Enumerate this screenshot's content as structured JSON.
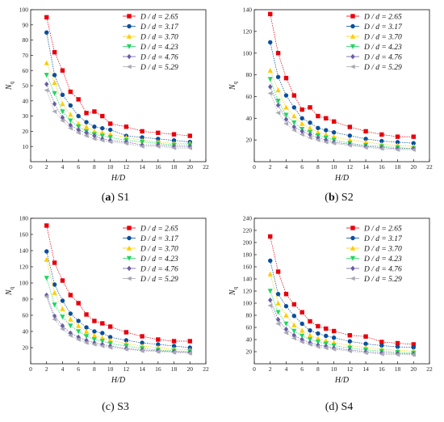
{
  "chart_data": [
    {
      "type": "scatter",
      "caption_letter": "a",
      "caption_text": "S1",
      "xlabel": "H/D",
      "ylabel": "N",
      "ylabel_sub": "q",
      "xlim": [
        0,
        22
      ],
      "ylim": [
        0,
        100
      ],
      "xticks": [
        0,
        2,
        4,
        6,
        8,
        10,
        12,
        14,
        16,
        18,
        20,
        22
      ],
      "yticks": [
        10,
        20,
        30,
        40,
        50,
        60,
        70,
        80,
        90,
        100
      ],
      "x": [
        2,
        3,
        4,
        5,
        6,
        7,
        8,
        9,
        10,
        12,
        14,
        16,
        18,
        20
      ],
      "series": [
        {
          "name": "D / d = 2.65",
          "values": [
            95,
            72,
            60,
            46,
            41,
            32,
            33,
            30,
            25,
            23,
            20,
            19,
            18,
            17
          ]
        },
        {
          "name": "D / d = 3.17",
          "values": [
            85,
            57,
            44,
            37,
            30,
            26,
            23,
            22,
            21,
            17,
            16,
            15,
            14,
            13
          ]
        },
        {
          "name": "D / d = 3.70",
          "values": [
            65,
            52,
            38,
            31,
            25,
            23,
            20,
            19,
            18,
            16,
            14,
            13,
            12,
            12
          ]
        },
        {
          "name": "D / d = 4.23",
          "values": [
            57,
            45,
            33,
            27,
            23,
            20,
            18,
            17,
            16,
            14,
            13,
            12,
            11,
            11
          ]
        },
        {
          "name": "D / d = 4.76",
          "values": [
            51,
            38,
            29,
            24,
            21,
            19,
            17,
            15,
            14,
            13,
            11,
            11,
            10,
            10
          ]
        },
        {
          "name": "D / d = 5.29",
          "values": [
            47,
            33,
            27,
            22,
            19,
            17,
            15,
            14,
            13,
            12,
            10,
            10,
            9,
            9
          ]
        }
      ]
    },
    {
      "type": "scatter",
      "caption_letter": "b",
      "caption_text": "S2",
      "xlabel": "H/D",
      "ylabel": "N",
      "ylabel_sub": "q",
      "xlim": [
        0,
        22
      ],
      "ylim": [
        0,
        140
      ],
      "xticks": [
        0,
        2,
        4,
        6,
        8,
        10,
        12,
        14,
        16,
        18,
        20,
        22
      ],
      "yticks": [
        20,
        40,
        60,
        80,
        100,
        120,
        140
      ],
      "x": [
        2,
        3,
        4,
        5,
        6,
        7,
        8,
        9,
        10,
        12,
        14,
        16,
        18,
        20
      ],
      "series": [
        {
          "name": "D / d = 2.65",
          "values": [
            136,
            100,
            77,
            61,
            48,
            50,
            42,
            40,
            37,
            32,
            28,
            25,
            23,
            23
          ]
        },
        {
          "name": "D / d = 3.17",
          "values": [
            110,
            78,
            61,
            50,
            40,
            36,
            31,
            29,
            27,
            24,
            21,
            19,
            18,
            17
          ]
        },
        {
          "name": "D / d = 3.70",
          "values": [
            84,
            66,
            50,
            42,
            35,
            31,
            27,
            25,
            23,
            20,
            18,
            16,
            15,
            14
          ]
        },
        {
          "name": "D / d = 4.23",
          "values": [
            76,
            56,
            43,
            36,
            30,
            27,
            24,
            22,
            20,
            17,
            15,
            14,
            13,
            12
          ]
        },
        {
          "name": "D / d = 4.76",
          "values": [
            69,
            52,
            39,
            32,
            28,
            25,
            22,
            20,
            18,
            16,
            14,
            13,
            12,
            12
          ]
        },
        {
          "name": "D / d = 5.29",
          "values": [
            63,
            45,
            35,
            29,
            25,
            22,
            20,
            18,
            17,
            15,
            13,
            12,
            11,
            11
          ]
        }
      ]
    },
    {
      "type": "scatter",
      "caption_letter": "",
      "caption_text": "(c) S3",
      "xlabel": "H/D",
      "ylabel": "N",
      "ylabel_sub": "q",
      "xlim": [
        0,
        22
      ],
      "ylim": [
        0,
        180
      ],
      "xticks": [
        0,
        2,
        4,
        6,
        8,
        10,
        12,
        14,
        16,
        18,
        20,
        22
      ],
      "yticks": [
        20,
        40,
        60,
        80,
        100,
        120,
        140,
        160,
        180
      ],
      "x": [
        2,
        3,
        4,
        5,
        6,
        7,
        8,
        9,
        10,
        12,
        14,
        16,
        18,
        20
      ],
      "series": [
        {
          "name": "D / d = 2.65",
          "values": [
            171,
            125,
            103,
            85,
            75,
            61,
            53,
            50,
            46,
            39,
            34,
            30,
            28,
            28
          ]
        },
        {
          "name": "D / d = 3.17",
          "values": [
            139,
            98,
            78,
            62,
            53,
            45,
            40,
            38,
            33,
            29,
            26,
            24,
            22,
            20
          ]
        },
        {
          "name": "D / d = 3.70",
          "values": [
            129,
            88,
            68,
            55,
            47,
            40,
            35,
            32,
            29,
            25,
            22,
            20,
            18,
            17
          ]
        },
        {
          "name": "D / d = 4.23",
          "values": [
            106,
            73,
            58,
            47,
            40,
            34,
            30,
            28,
            25,
            22,
            19,
            17,
            16,
            15
          ]
        },
        {
          "name": "D / d = 4.76",
          "values": [
            85,
            59,
            47,
            38,
            33,
            29,
            26,
            24,
            22,
            19,
            17,
            16,
            15,
            14
          ]
        },
        {
          "name": "D / d = 5.29",
          "values": [
            83,
            55,
            43,
            35,
            30,
            26,
            24,
            22,
            20,
            18,
            16,
            15,
            14,
            13
          ]
        }
      ]
    },
    {
      "type": "scatter",
      "caption_letter": "",
      "caption_text": "(d) S4",
      "xlabel": "H/D",
      "ylabel": "N",
      "ylabel_sub": "q",
      "xlim": [
        0,
        22
      ],
      "ylim": [
        0,
        240
      ],
      "xticks": [
        0,
        2,
        4,
        6,
        8,
        10,
        12,
        14,
        16,
        18,
        20,
        22
      ],
      "yticks": [
        20,
        40,
        60,
        80,
        100,
        120,
        140,
        160,
        180,
        200,
        220,
        240
      ],
      "x": [
        2,
        3,
        4,
        5,
        6,
        7,
        8,
        9,
        10,
        12,
        14,
        16,
        18,
        20
      ],
      "series": [
        {
          "name": "D / d = 2.65",
          "values": [
            210,
            152,
            115,
            98,
            85,
            70,
            62,
            58,
            54,
            47,
            45,
            36,
            34,
            32
          ]
        },
        {
          "name": "D / d = 3.17",
          "values": [
            170,
            115,
            95,
            79,
            66,
            55,
            50,
            46,
            43,
            37,
            33,
            30,
            28,
            27
          ]
        },
        {
          "name": "D / d = 3.70",
          "values": [
            148,
            100,
            80,
            64,
            55,
            47,
            42,
            38,
            35,
            30,
            27,
            24,
            22,
            21
          ]
        },
        {
          "name": "D / d = 4.23",
          "values": [
            120,
            85,
            66,
            54,
            46,
            40,
            36,
            33,
            30,
            26,
            23,
            21,
            19,
            18
          ]
        },
        {
          "name": "D / d = 4.76",
          "values": [
            105,
            73,
            57,
            47,
            40,
            35,
            31,
            29,
            26,
            23,
            20,
            18,
            17,
            16
          ]
        },
        {
          "name": "D / d = 5.29",
          "values": [
            96,
            66,
            51,
            42,
            36,
            32,
            28,
            26,
            24,
            21,
            18,
            16,
            15,
            15
          ]
        }
      ]
    }
  ],
  "style": {
    "colors": [
      "#e8000b",
      "#0a4f9c",
      "#ffcc00",
      "#1fd65f",
      "#6b5ca5",
      "#a9a9b4"
    ],
    "markers": [
      "square",
      "circle",
      "triangle-up",
      "triangle-down",
      "diamond",
      "triangle-left"
    ]
  }
}
